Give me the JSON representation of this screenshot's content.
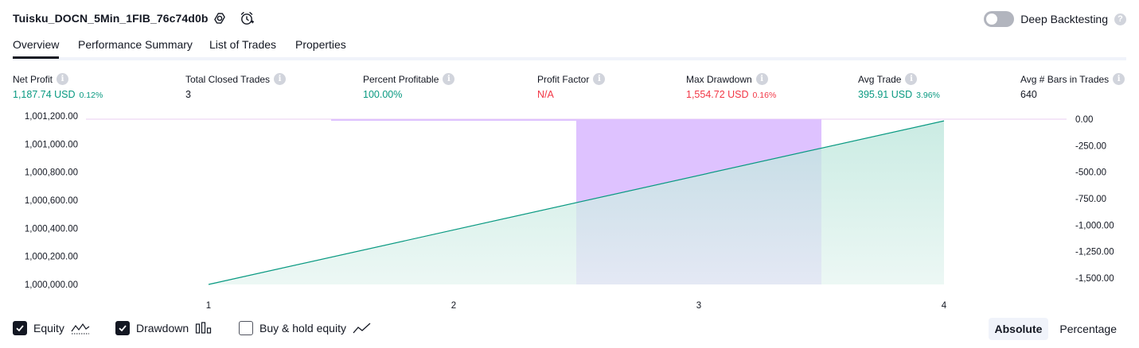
{
  "header": {
    "title": "Tuisku_DOCN_5Min_1FIB_76c74d0b",
    "settings_icon": "settings-gear-icon",
    "alert_icon": "add-alert-clock-icon",
    "deep_backtesting_label": "Deep Backtesting",
    "deep_backtesting_enabled": false,
    "help_glyph": "?"
  },
  "tabs": [
    {
      "label": "Overview",
      "active": true
    },
    {
      "label": "Performance Summary",
      "active": false
    },
    {
      "label": "List of Trades",
      "active": false
    },
    {
      "label": "Properties",
      "active": false
    }
  ],
  "metrics": [
    {
      "label": "Net Profit",
      "value": "1,187.74 USD",
      "pct": "0.12%",
      "color": "#089981"
    },
    {
      "label": "Total Closed Trades",
      "value": "3",
      "pct": "",
      "color": "#131722"
    },
    {
      "label": "Percent Profitable",
      "value": "100.00%",
      "pct": "",
      "color": "#089981"
    },
    {
      "label": "Profit Factor",
      "value": "N/A",
      "pct": "",
      "color": "#f23645"
    },
    {
      "label": "Max Drawdown",
      "value": "1,554.72 USD",
      "pct": "0.16%",
      "color": "#f23645"
    },
    {
      "label": "Avg Trade",
      "value": "395.91 USD",
      "pct": "3.96%",
      "color": "#089981"
    },
    {
      "label": "Avg # Bars in Trades",
      "value": "640",
      "pct": "",
      "color": "#131722"
    }
  ],
  "info_glyph": "i",
  "chart_data": {
    "type": "area",
    "x": [
      1,
      2,
      3,
      4
    ],
    "x_ticks": [
      "1",
      "2",
      "3",
      "4"
    ],
    "left_axis": {
      "ticks": [
        "1,001,200.00",
        "1,001,000.00",
        "1,000,800.00",
        "1,000,600.00",
        "1,000,400.00",
        "1,000,200.00",
        "1,000,000.00"
      ],
      "range": [
        1000000,
        1001200
      ]
    },
    "right_axis": {
      "ticks": [
        "0.00",
        "-250.00",
        "-500.00",
        "-750.00",
        "-1,000.00",
        "-1,250.00",
        "-1,500.00"
      ],
      "range": [
        -1554.72,
        0
      ]
    },
    "series": [
      {
        "name": "Equity",
        "axis": "left",
        "x": [
          1,
          4
        ],
        "values": [
          1000000,
          1001187.74
        ],
        "color": "#089981",
        "fill": "#c2e8de"
      },
      {
        "name": "Drawdown",
        "axis": "right",
        "bars": [
          {
            "x_from": 1.5,
            "x_to": 2.5,
            "value": 0
          },
          {
            "x_from": 2.5,
            "x_to": 3.5,
            "value": -1554.72
          }
        ],
        "color": "#c890ff",
        "fill": "#dcbfff"
      }
    ]
  },
  "footer": {
    "legend": [
      {
        "label": "Equity",
        "checked": true,
        "icon": "equity-area-icon"
      },
      {
        "label": "Drawdown",
        "checked": true,
        "icon": "drawdown-bars-icon"
      },
      {
        "label": "Buy & hold equity",
        "checked": false,
        "icon": "buy-hold-line-icon"
      }
    ],
    "modes": [
      {
        "label": "Absolute",
        "active": true
      },
      {
        "label": "Percentage",
        "active": false
      }
    ]
  }
}
